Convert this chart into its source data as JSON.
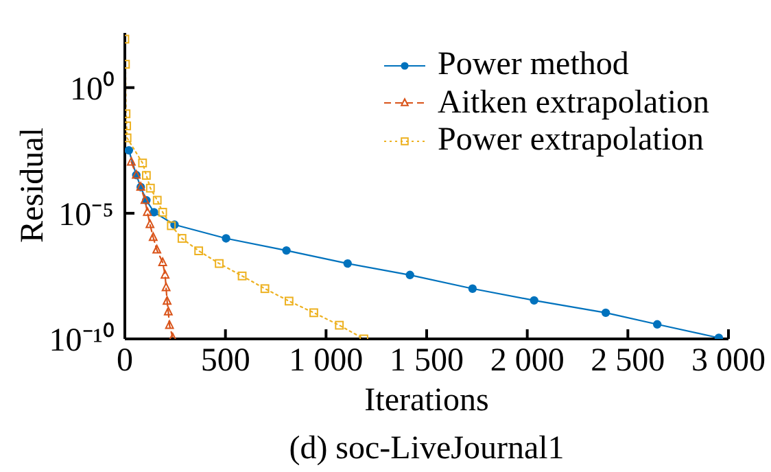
{
  "chart_data": {
    "type": "line",
    "title": "(d) soc-LiveJournal1",
    "xlabel": "Iterations",
    "ylabel": "Residual",
    "xlim": [
      0,
      3000
    ],
    "xticks": [
      0,
      500,
      {
        "value": 1000,
        "label": "1 000"
      },
      {
        "value": 1500,
        "label": "1 500"
      },
      {
        "value": 2000,
        "label": "2 000"
      },
      {
        "value": 2500,
        "label": "2 500"
      },
      {
        "value": 3000,
        "label": "3 000"
      }
    ],
    "ylim": [
      1e-10,
      150
    ],
    "yticks": [
      {
        "value": 1e-10,
        "label": "10⁻¹⁰"
      },
      {
        "value": 1e-05,
        "label": "10⁻⁵"
      },
      {
        "value": 1,
        "label": "10⁰"
      }
    ],
    "log": "y",
    "legend": "top right",
    "series": [
      {
        "name": "Power method",
        "color": "#0072bd",
        "marker": "circle",
        "line_style": "solid",
        "x": [
          20,
          57,
          79,
          107,
          145,
          247,
          503,
          803,
          1107,
          1417,
          1728,
          2034,
          2390,
          2646,
          2952
        ],
        "values": [
          0.0032,
          0.00033,
          0.00011,
          3.3e-05,
          1.1e-05,
          3.5e-06,
          1e-06,
          3.3e-07,
          1e-07,
          3.5e-08,
          1e-08,
          3.4e-09,
          1.1e-09,
          3.8e-10,
          1.1e-10
        ]
      },
      {
        "name": "Aitken extrapolation",
        "color": "#d95319",
        "marker": "triangle",
        "line_style": "dashed",
        "x": [
          32,
          57,
          79,
          100,
          112,
          125,
          141,
          159,
          188,
          200,
          205,
          210,
          216,
          222,
          238
        ],
        "values": [
          0.0011,
          0.00033,
          0.00011,
          3.3e-05,
          1.1e-05,
          3.6e-06,
          1.1e-06,
          3.5e-07,
          1.1e-07,
          3.5e-08,
          1.1e-08,
          3.2e-09,
          1.2e-09,
          3.5e-10,
          1.1e-10
        ]
      },
      {
        "name": "Power extrapolation",
        "color": "#edb120",
        "marker": "square",
        "line_style": "dotted",
        "x": [
          0,
          3,
          6,
          9,
          11,
          88,
          107,
          127,
          161,
          188,
          231,
          284,
          367,
          469,
          583,
          696,
          816,
          939,
          1066,
          1188
        ],
        "values": [
          85,
          8.5,
          0.091,
          0.03,
          0.01,
          0.001,
          0.00032,
          0.0001,
          3.3e-05,
          1.1e-05,
          3.2e-06,
          1e-06,
          3.2e-07,
          1e-07,
          3.2e-08,
          1e-08,
          3.2e-09,
          1.1e-09,
          3.5e-10,
          1e-10
        ]
      }
    ]
  }
}
